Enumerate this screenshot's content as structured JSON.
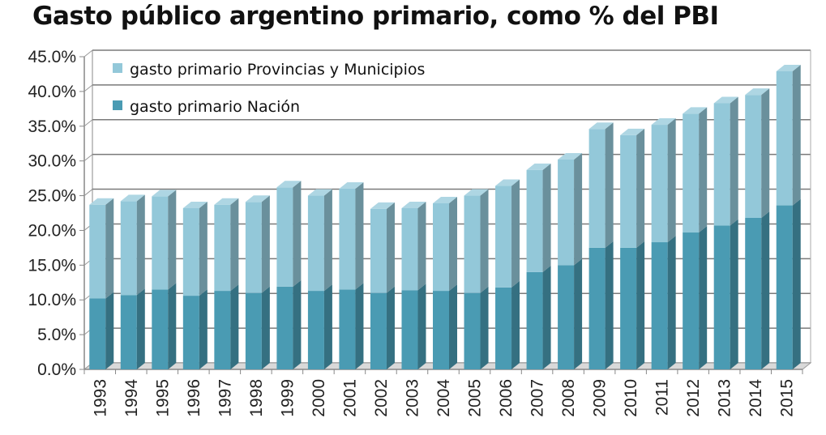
{
  "chart_data": {
    "type": "bar",
    "stacked": true,
    "title": "Gasto público argentino primario, como % del PBI",
    "xlabel": "",
    "ylabel": "",
    "ylim": [
      0,
      45
    ],
    "yticks": [
      0,
      5,
      10,
      15,
      20,
      25,
      30,
      35,
      40,
      45
    ],
    "ytick_labels": [
      "0.0%",
      "5.0%",
      "10.0%",
      "15.0%",
      "20.0%",
      "25.0%",
      "30.0%",
      "35.0%",
      "40.0%",
      "45.0%"
    ],
    "grid": true,
    "legend_position": "top-left",
    "categories": [
      "1993",
      "1994",
      "1995",
      "1996",
      "1997",
      "1998",
      "1999",
      "2000",
      "2001",
      "2002",
      "2003",
      "2004",
      "2005",
      "2006",
      "2007",
      "2008",
      "2009",
      "2010",
      "2011",
      "2012",
      "2013",
      "2014",
      "2015"
    ],
    "series": [
      {
        "name": "gasto primario Nación",
        "color": "#4a9bb3",
        "values": [
          10.2,
          10.7,
          11.5,
          10.6,
          11.3,
          11.0,
          11.9,
          11.3,
          11.5,
          11.0,
          11.4,
          11.3,
          11.0,
          11.8,
          14.0,
          15.0,
          17.5,
          17.5,
          18.3,
          19.7,
          20.7,
          21.8,
          23.6
        ]
      },
      {
        "name": "gasto primario Provincias y Municipios",
        "color": "#93c8d9",
        "values": [
          13.5,
          13.5,
          13.4,
          12.6,
          12.4,
          13.1,
          14.3,
          13.7,
          14.5,
          12.1,
          11.8,
          12.6,
          14.0,
          14.6,
          14.7,
          15.2,
          17.1,
          16.2,
          16.9,
          17.1,
          17.6,
          17.7,
          19.3
        ]
      }
    ]
  }
}
